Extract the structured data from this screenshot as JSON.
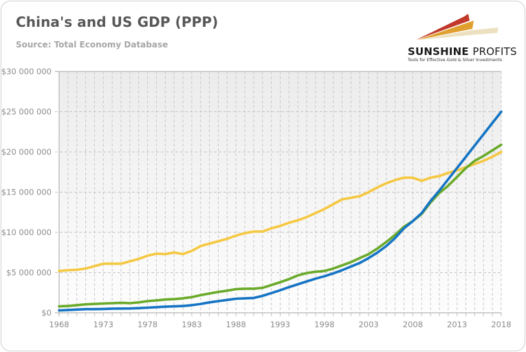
{
  "header": {
    "title": "China's and US GDP (PPP)",
    "subtitle": "Source: Total Economy Database"
  },
  "logo": {
    "name_bold": "SUNSHINE",
    "name_thin": "PROFITS",
    "tagline": "Tools for Effective Gold & Silver Investments",
    "colors": [
      "#c0392b",
      "#e0a030",
      "#e8d8b0"
    ]
  },
  "chart_data": {
    "type": "line",
    "title": "China's and US GDP (PPP)",
    "subtitle": "Source: Total Economy Database",
    "xlabel": "",
    "ylabel": "",
    "ylim": [
      0,
      30000000
    ],
    "xlim": [
      1968,
      2018
    ],
    "grid": true,
    "legend": "none",
    "y_ticks": [
      {
        "value": 0,
        "label": "$0"
      },
      {
        "value": 5000000,
        "label": "$5 000 000"
      },
      {
        "value": 10000000,
        "label": "$10 000 000"
      },
      {
        "value": 15000000,
        "label": "$15 000 000"
      },
      {
        "value": 20000000,
        "label": "$20 000 000"
      },
      {
        "value": 25000000,
        "label": "$25 000 000"
      },
      {
        "value": 30000000,
        "label": "$30 000 000"
      }
    ],
    "x_ticks": [
      "1968",
      "1973",
      "1978",
      "1983",
      "1988",
      "1993",
      "1998",
      "2003",
      "2008",
      "2013",
      "2018"
    ],
    "x": [
      1968,
      1969,
      1970,
      1971,
      1972,
      1973,
      1974,
      1975,
      1976,
      1977,
      1978,
      1979,
      1980,
      1981,
      1982,
      1983,
      1984,
      1985,
      1986,
      1987,
      1988,
      1989,
      1990,
      1991,
      1992,
      1993,
      1994,
      1995,
      1996,
      1997,
      1998,
      1999,
      2000,
      2001,
      2002,
      2003,
      2004,
      2005,
      2006,
      2007,
      2008,
      2009,
      2010,
      2011,
      2012,
      2013,
      2014,
      2015,
      2016,
      2017,
      2018
    ],
    "series": [
      {
        "name": "Yellow series",
        "color": "#f5c842",
        "values": [
          5200000,
          5300000,
          5350000,
          5500000,
          5800000,
          6100000,
          6100000,
          6100000,
          6400000,
          6700000,
          7100000,
          7350000,
          7300000,
          7500000,
          7300000,
          7700000,
          8300000,
          8600000,
          8900000,
          9200000,
          9600000,
          9900000,
          10100000,
          10100000,
          10500000,
          10800000,
          11200000,
          11500000,
          11900000,
          12400000,
          12900000,
          13500000,
          14100000,
          14300000,
          14500000,
          15000000,
          15600000,
          16100000,
          16500000,
          16800000,
          16800000,
          16400000,
          16800000,
          17000000,
          17400000,
          17700000,
          18100000,
          18500000,
          18900000,
          19400000,
          20000000
        ]
      },
      {
        "name": "Green series",
        "color": "#6aaa2a",
        "values": [
          800000,
          850000,
          950000,
          1050000,
          1100000,
          1150000,
          1200000,
          1250000,
          1200000,
          1300000,
          1450000,
          1550000,
          1650000,
          1700000,
          1800000,
          1950000,
          2200000,
          2400000,
          2600000,
          2750000,
          2950000,
          3000000,
          3000000,
          3100000,
          3450000,
          3800000,
          4200000,
          4650000,
          4950000,
          5100000,
          5200000,
          5500000,
          5900000,
          6300000,
          6800000,
          7300000,
          8000000,
          8800000,
          9700000,
          10700000,
          11400000,
          12300000,
          13700000,
          14900000,
          15800000,
          16900000,
          18000000,
          18900000,
          19500000,
          20200000,
          20900000
        ]
      },
      {
        "name": "Blue series",
        "color": "#1574c4",
        "values": [
          300000,
          350000,
          400000,
          450000,
          450000,
          480000,
          520000,
          530000,
          540000,
          580000,
          640000,
          700000,
          760000,
          800000,
          850000,
          950000,
          1100000,
          1300000,
          1450000,
          1600000,
          1750000,
          1800000,
          1850000,
          2100000,
          2450000,
          2800000,
          3200000,
          3550000,
          3900000,
          4250000,
          4550000,
          4900000,
          5300000,
          5750000,
          6200000,
          6800000,
          7500000,
          8300000,
          9300000,
          10500000,
          11400000,
          12400000,
          13900000,
          15200000,
          16600000,
          18000000,
          19400000,
          20800000,
          22200000,
          23600000,
          25000000
        ]
      }
    ]
  }
}
